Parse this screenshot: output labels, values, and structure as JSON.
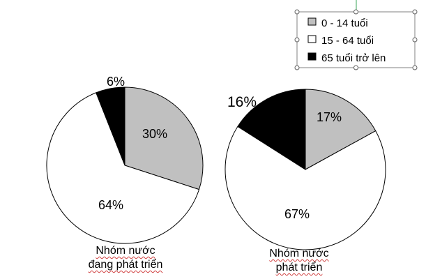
{
  "chart_data": {
    "type": "pie",
    "legend": {
      "placement": "top-right",
      "entries": [
        {
          "label": "0 - 14 tuổi",
          "color": "#c0c0c0"
        },
        {
          "label": "15 - 64 tuổi",
          "color": "#ffffff"
        },
        {
          "label": "65 tuổi trở lên",
          "color": "#000000"
        }
      ]
    },
    "pies": [
      {
        "caption": [
          "Nhóm nước",
          "đang phát triển"
        ],
        "slices": [
          {
            "category": "0 - 14 tuổi",
            "value": 30,
            "label": "30%"
          },
          {
            "category": "15 - 64 tuổi",
            "value": 64,
            "label": "64%"
          },
          {
            "category": "65 tuổi trở lên",
            "value": 6,
            "label": "6%"
          }
        ]
      },
      {
        "caption": [
          "Nhóm nước",
          "phát triển"
        ],
        "slices": [
          {
            "category": "0 - 14 tuổi",
            "value": 17,
            "label": "17%"
          },
          {
            "category": "15 - 64 tuổi",
            "value": 67,
            "label": "67%"
          },
          {
            "category": "65 tuổi trở lên",
            "value": 16,
            "label": "16%"
          }
        ]
      }
    ]
  }
}
